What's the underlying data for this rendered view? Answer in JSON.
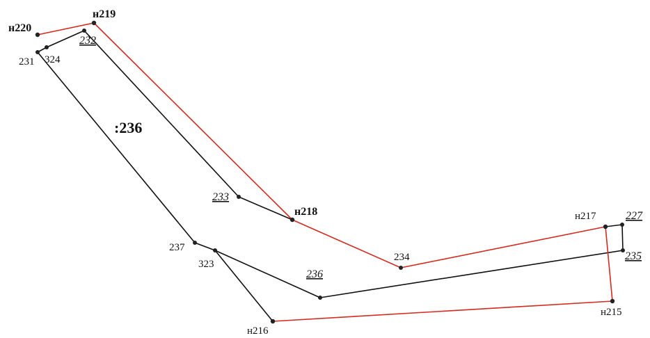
{
  "colors": {
    "new_boundary": "#d42a20",
    "existing_boundary": "#111111",
    "point": "#222222",
    "background": "#ffffff"
  },
  "labels": {
    "h220": "н220",
    "h219": "н219",
    "h218": "н218",
    "h217": "н217",
    "h216": "н216",
    "h215": "н215",
    "p231": "231",
    "p324": "324",
    "p232": "232",
    "p233": "233",
    "p234": "234",
    "p237": "237",
    "p323": "323",
    "p236": "236",
    "p227": "227",
    "p235": "235",
    "block": ":236"
  }
}
